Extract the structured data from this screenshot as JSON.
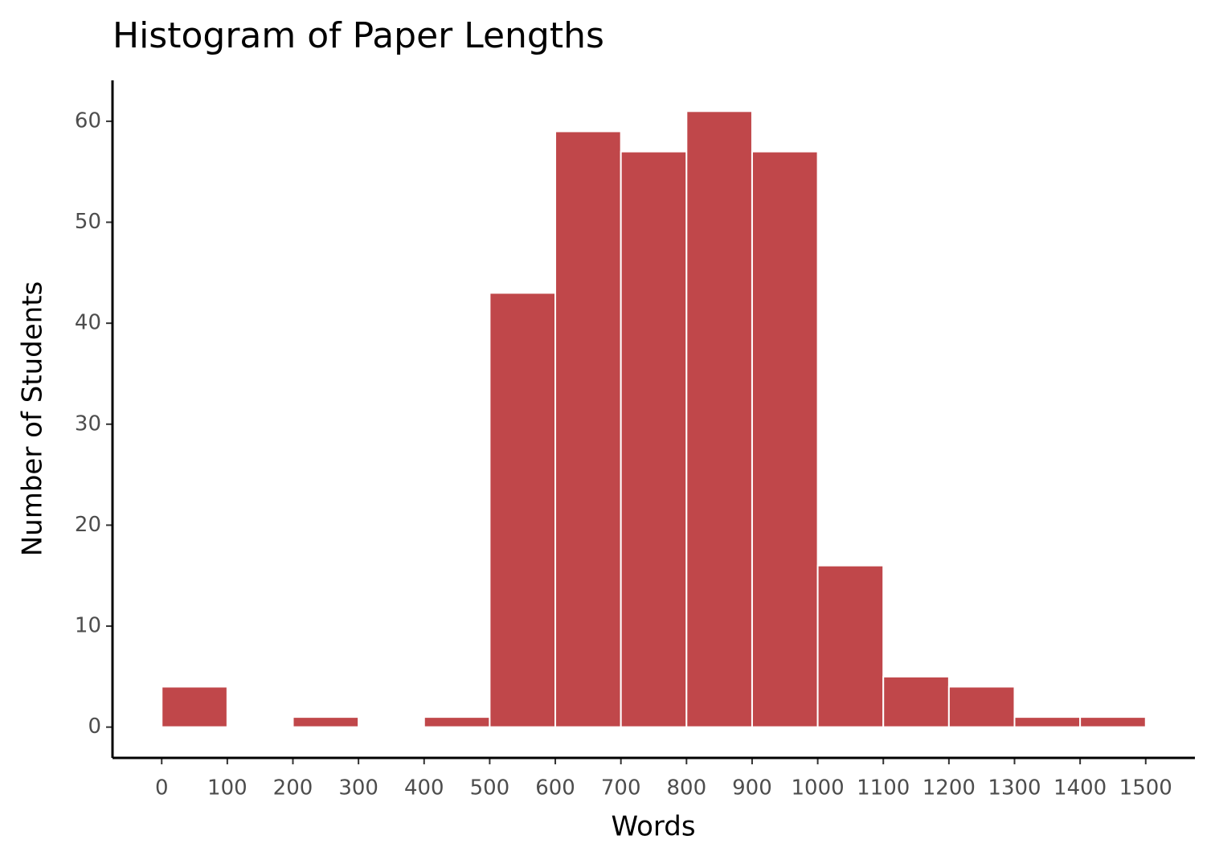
{
  "chart_data": {
    "type": "histogram",
    "title": "Histogram of Paper Lengths",
    "x_label": "Words",
    "y_label": "Number of Students",
    "bins": [
      0,
      100,
      200,
      300,
      400,
      500,
      600,
      700,
      800,
      900,
      1000,
      1100,
      1200,
      1300,
      1400,
      1500
    ],
    "values": [
      4,
      0,
      1,
      0,
      1,
      43,
      59,
      57,
      61,
      57,
      16,
      5,
      4,
      1,
      1
    ],
    "color": "#c0474a",
    "xlim": [
      -75,
      1575
    ],
    "ylim": [
      -3.05,
      64.05
    ],
    "xticks": [
      0,
      100,
      200,
      300,
      400,
      500,
      600,
      700,
      800,
      900,
      1000,
      1100,
      1200,
      1300,
      1400,
      1500
    ],
    "yticks": [
      0,
      10,
      20,
      30,
      40,
      50,
      60
    ]
  }
}
